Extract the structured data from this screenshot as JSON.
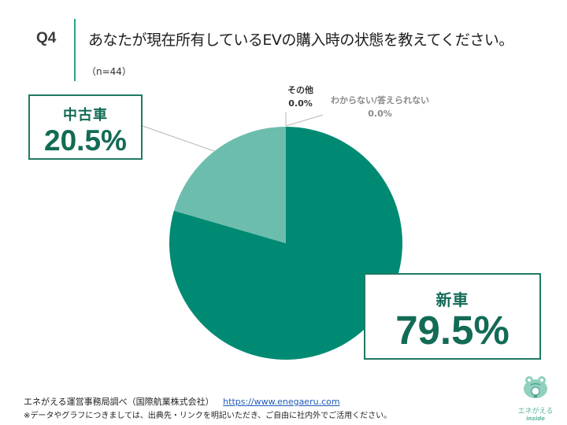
{
  "header": {
    "question_id": "Q4",
    "title": "あなたが現在所有しているEVの購入時の状態を教えてください。",
    "sample_size": "（n=44）"
  },
  "colors": {
    "new_car": "#008A73",
    "used_car": "#6DBDAE",
    "callout_border": "#1F7A63",
    "callout_text": "#136B55",
    "accent_divider": "#2AA38B"
  },
  "callouts": {
    "used": {
      "category": "中古車",
      "percent": "20.5%"
    },
    "new": {
      "category": "新車",
      "percent": "79.5%"
    },
    "other": {
      "category": "その他",
      "percent": "0.0%"
    },
    "unknown": {
      "category": "わからない/答えられない",
      "percent": "0.0%"
    }
  },
  "chart_data": {
    "type": "pie",
    "title": "あなたが現在所有しているEVの購入時の状態を教えてください。",
    "subtitle": "（n=44）",
    "categories": [
      "新車",
      "中古車",
      "その他",
      "わからない/答えられない"
    ],
    "values": [
      79.5,
      20.5,
      0.0,
      0.0
    ],
    "unit": "%",
    "colors": [
      "#008A73",
      "#6DBDAE",
      "#CCCCCC",
      "#CCCCCC"
    ],
    "start_angle": "12 o'clock, clockwise",
    "legend": "none (callout labels)"
  },
  "footer": {
    "source": "エネがえる運営事務局調べ（国際航業株式会社）",
    "link": "https://www.enegaeru.com",
    "note": "※データやグラフにつきましては、出典先・リンクを明記いただき、ご自由に社内外でご活用ください。"
  },
  "logo": {
    "name": "エネがえる",
    "sub": "inside"
  }
}
